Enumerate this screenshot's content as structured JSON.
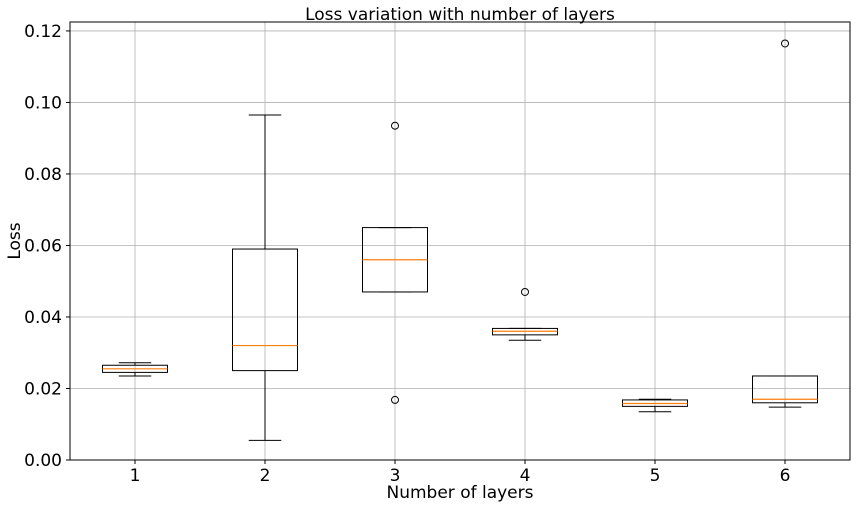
{
  "chart_data": {
    "type": "box",
    "title": "Loss variation with number of layers",
    "xlabel": "Number of layers",
    "ylabel": "Loss",
    "categories": [
      "1",
      "2",
      "3",
      "4",
      "5",
      "6"
    ],
    "ylim": [
      0.0,
      0.1225
    ],
    "xlim": [
      0.5,
      6.5
    ],
    "yticks": [
      0.0,
      0.02,
      0.04,
      0.06,
      0.08,
      0.1,
      0.12
    ],
    "ytick_labels": [
      "0.00",
      "0.02",
      "0.04",
      "0.06",
      "0.08",
      "0.10",
      "0.12"
    ],
    "grid": true,
    "median_color": "#ff7f0e",
    "boxes": [
      {
        "category": "1",
        "whislo": 0.0235,
        "q1": 0.0245,
        "med": 0.0255,
        "q3": 0.0265,
        "whishi": 0.0272,
        "fliers": []
      },
      {
        "category": "2",
        "whislo": 0.0055,
        "q1": 0.025,
        "med": 0.032,
        "q3": 0.059,
        "whishi": 0.0965,
        "fliers": []
      },
      {
        "category": "3",
        "whislo": 0.047,
        "q1": 0.047,
        "med": 0.056,
        "q3": 0.065,
        "whishi": 0.065,
        "fliers": [
          0.0935,
          0.0168
        ]
      },
      {
        "category": "4",
        "whislo": 0.0335,
        "q1": 0.035,
        "med": 0.036,
        "q3": 0.0368,
        "whishi": 0.0368,
        "fliers": [
          0.047
        ]
      },
      {
        "category": "5",
        "whislo": 0.0135,
        "q1": 0.015,
        "med": 0.0158,
        "q3": 0.0168,
        "whishi": 0.017,
        "fliers": []
      },
      {
        "category": "6",
        "whislo": 0.0148,
        "q1": 0.016,
        "med": 0.017,
        "q3": 0.0235,
        "whishi": 0.0235,
        "fliers": [
          0.1165
        ]
      }
    ]
  }
}
